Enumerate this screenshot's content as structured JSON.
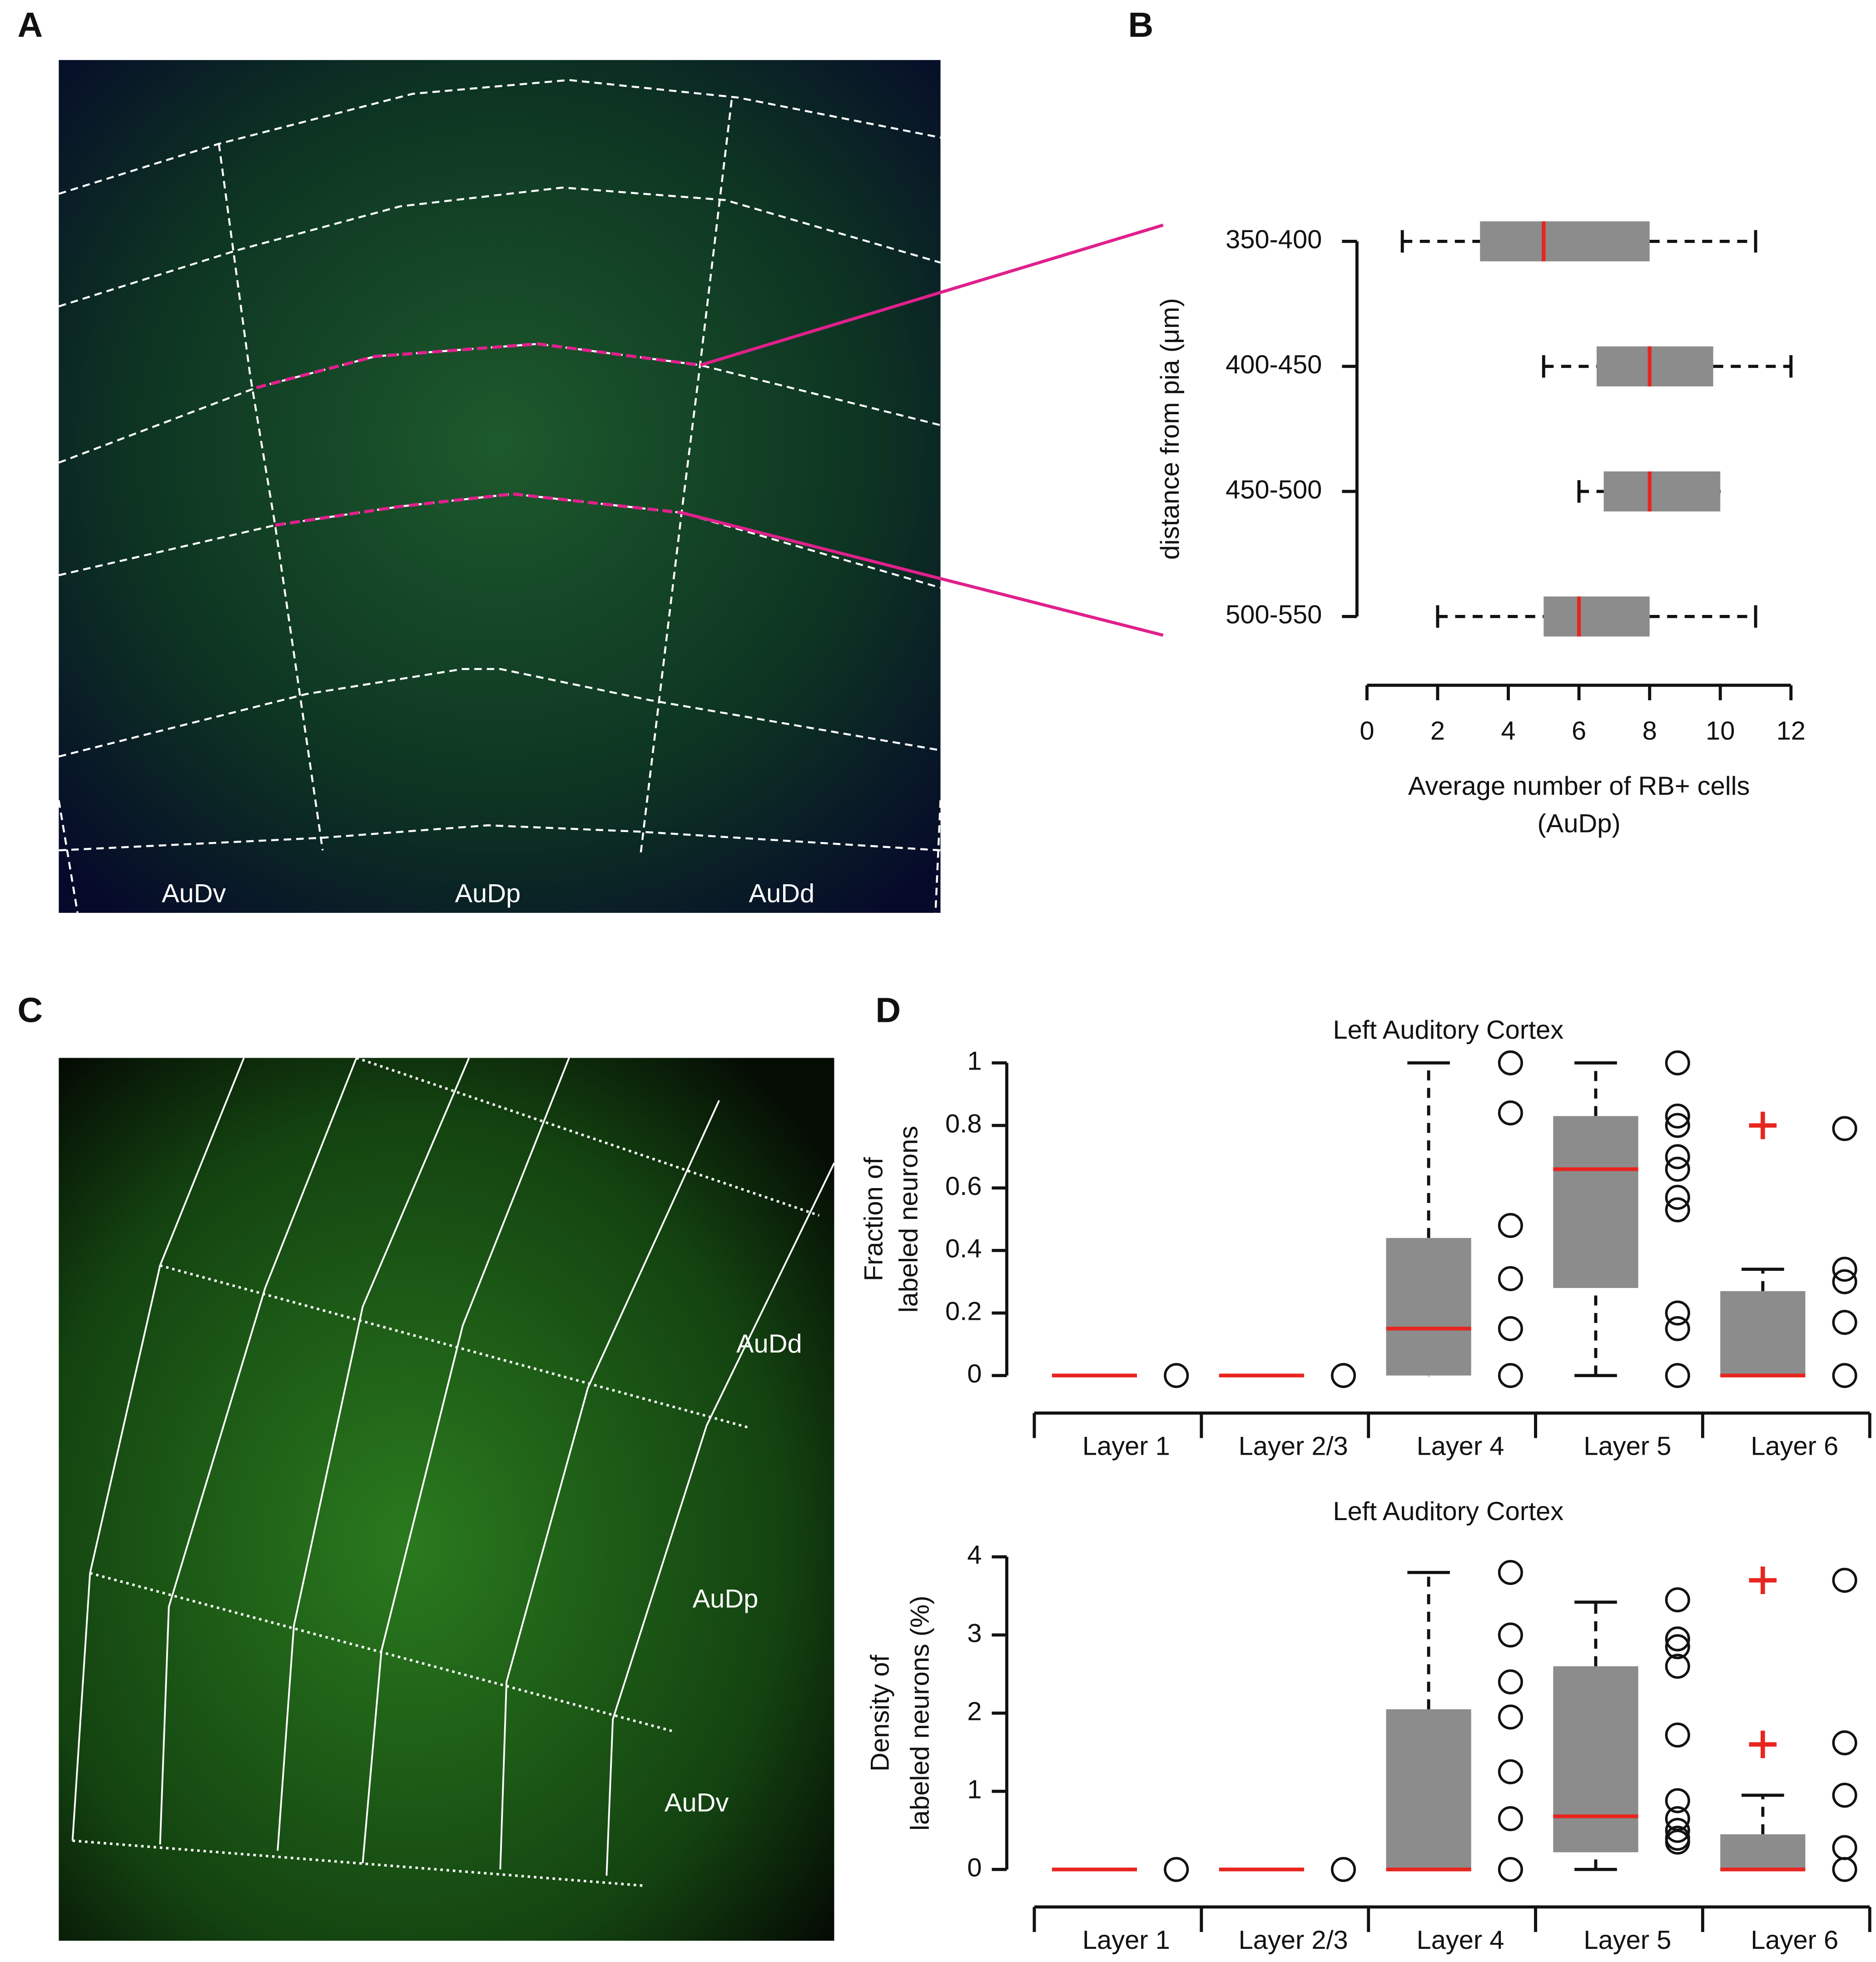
{
  "panel_labels": [
    "A",
    "B",
    "C",
    "D"
  ],
  "image_a": {
    "region_labels": [
      "AuDv",
      "AuDp",
      "AuDd"
    ]
  },
  "image_c": {
    "region_labels": [
      "AuDd",
      "AuDp",
      "AuDv"
    ]
  },
  "chart_data": [
    {
      "type": "boxplot",
      "orientation": "horizontal",
      "categories": [
        "350-400",
        "400-450",
        "450-500",
        "500-550"
      ],
      "ylabel": "distance from pia (μm)",
      "xlabel": [
        "Average number of RB+ cells",
        "(AuDp)"
      ],
      "xlim": [
        0,
        12
      ],
      "xticks": [
        0,
        2,
        4,
        6,
        8,
        10,
        12
      ],
      "box_color": "#8c8c8c",
      "median_color": "#e8251f",
      "boxes": [
        {
          "min": 1,
          "q1": 3.2,
          "median": 5,
          "q3": 8,
          "max": 11
        },
        {
          "min": 5,
          "q1": 6.5,
          "median": 8,
          "q3": 9.8,
          "max": 12
        },
        {
          "min": 6,
          "q1": 6.7,
          "median": 8,
          "q3": 10,
          "max": 10
        },
        {
          "min": 2,
          "q1": 5,
          "median": 6,
          "q3": 8,
          "max": 11
        }
      ]
    },
    {
      "type": "boxplot",
      "orientation": "vertical",
      "title": "Left Auditory Cortex",
      "ylabel": [
        "Fraction of",
        "labeled neurons"
      ],
      "categories": [
        "Layer 1",
        "Layer 2/3",
        "Layer 4",
        "Layer 5",
        "Layer 6"
      ],
      "ylim": [
        0,
        1
      ],
      "yticks": [
        0,
        0.2,
        0.4,
        0.6,
        0.8,
        1
      ],
      "box_color": "#8c8c8c",
      "median_color": "#e8251f",
      "outlier_color": "#e8251f",
      "boxes": [
        {
          "min": 0,
          "q1": 0,
          "median": 0,
          "q3": 0,
          "max": 0,
          "outliers": []
        },
        {
          "min": 0,
          "q1": 0,
          "median": 0,
          "q3": 0,
          "max": 0,
          "outliers": []
        },
        {
          "min": 0,
          "q1": 0,
          "median": 0.15,
          "q3": 0.44,
          "max": 1,
          "outliers": []
        },
        {
          "min": 0,
          "q1": 0.28,
          "median": 0.66,
          "q3": 0.83,
          "max": 1,
          "outliers": []
        },
        {
          "min": 0,
          "q1": 0,
          "median": 0,
          "q3": 0.27,
          "max": 0.34,
          "outliers": [
            0.8
          ]
        }
      ],
      "points": [
        [
          0
        ],
        [
          0
        ],
        [
          1,
          0.84,
          0.48,
          0.31,
          0.15,
          0
        ],
        [
          1,
          0.83,
          0.8,
          0.7,
          0.66,
          0.57,
          0.53,
          0.2,
          0.15,
          0
        ],
        [
          0.79,
          0.34,
          0.3,
          0.17,
          0
        ]
      ]
    },
    {
      "type": "boxplot",
      "orientation": "vertical",
      "title": "Left Auditory Cortex",
      "ylabel": [
        "Density of",
        "labeled neurons (%)"
      ],
      "categories": [
        "Layer 1",
        "Layer 2/3",
        "Layer 4",
        "Layer 5",
        "Layer 6"
      ],
      "ylim": [
        0,
        4
      ],
      "yticks": [
        0,
        1,
        2,
        3,
        4
      ],
      "box_color": "#8c8c8c",
      "median_color": "#e8251f",
      "outlier_color": "#e8251f",
      "boxes": [
        {
          "min": 0,
          "q1": 0,
          "median": 0,
          "q3": 0,
          "max": 0,
          "outliers": []
        },
        {
          "min": 0,
          "q1": 0,
          "median": 0,
          "q3": 0,
          "max": 0,
          "outliers": []
        },
        {
          "min": 0,
          "q1": 0,
          "median": 0,
          "q3": 2.05,
          "max": 3.8,
          "outliers": []
        },
        {
          "min": 0,
          "q1": 0.22,
          "median": 0.68,
          "q3": 2.6,
          "max": 3.42,
          "outliers": []
        },
        {
          "min": 0,
          "q1": 0,
          "median": 0,
          "q3": 0.45,
          "max": 0.95,
          "outliers": [
            3.7,
            1.6
          ]
        }
      ],
      "points": [
        [
          0
        ],
        [
          0
        ],
        [
          3.8,
          3,
          2.4,
          1.95,
          1.25,
          0.65,
          0
        ],
        [
          3.45,
          2.95,
          2.85,
          2.6,
          1.72,
          0.88,
          0.65,
          0.5,
          0.4,
          0.35
        ],
        [
          3.7,
          1.62,
          0.95,
          0.28,
          0
        ]
      ]
    }
  ]
}
